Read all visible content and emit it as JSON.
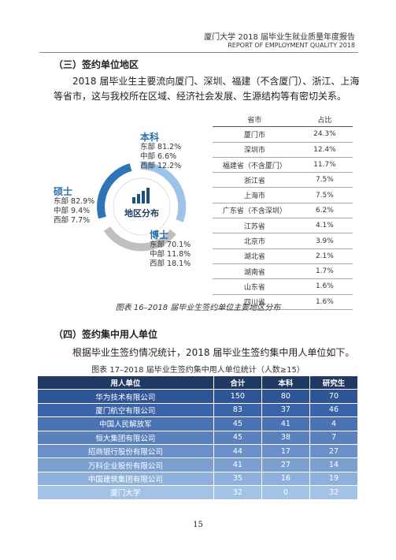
{
  "header": {
    "title": "厦门大学 2018 届毕业生就业质量年度报告",
    "subtitle": "REPORT OF EMPLOYMENT QUALITY 2018"
  },
  "section3": {
    "heading": "（三）签约单位地区",
    "paragraph": "2018 届毕业生主要流向厦门、深圳、福建（不含厦门）、浙江、上海等省市，这与我校所在区域、经济社会发展、生源结构等有密切关系。",
    "diagram": {
      "center_label": "地区分布",
      "groups": [
        {
          "name": "本科",
          "lines": [
            "东部 81.2%",
            "中部 6.6%",
            "西部 12.2%"
          ]
        },
        {
          "name": "硕士",
          "lines": [
            "东部 82.9%",
            "中部 9.4%",
            "西部 7.7%"
          ]
        },
        {
          "name": "博士",
          "lines": [
            "东部 70.1%",
            "中部 11.8%",
            "西部 18.1%"
          ]
        }
      ]
    },
    "region_table": {
      "columns": [
        "省市",
        "占比"
      ],
      "rows": [
        [
          "厦门市",
          "24.3%"
        ],
        [
          "深圳市",
          "12.4%"
        ],
        [
          "福建省（不含厦门）",
          "11.7%"
        ],
        [
          "浙江省",
          "7.5%"
        ],
        [
          "上海市",
          "7.5%"
        ],
        [
          "广东省（不含深圳）",
          "6.2%"
        ],
        [
          "江苏省",
          "4.1%"
        ],
        [
          "北京市",
          "3.9%"
        ],
        [
          "湖北省",
          "2.1%"
        ],
        [
          "湖南省",
          "1.7%"
        ],
        [
          "山东省",
          "1.6%"
        ],
        [
          "四川省",
          "1.6%"
        ]
      ]
    },
    "caption": "图表 16–2018 届毕业生签约单位主要地区分布"
  },
  "section4": {
    "heading": "（四）签约集中用人单位",
    "paragraph": "根据毕业生签约情况统计，2018 届毕业生签约集中用人单位如下。",
    "caption": "图表 17–2018 届毕业生签约集中用人单位统计（人数≥15）",
    "table": {
      "columns": [
        "用人单位",
        "合计",
        "本科",
        "研究生"
      ],
      "rows": [
        [
          "华为技术有限公司",
          "150",
          "80",
          "70"
        ],
        [
          "厦门航空有限公司",
          "83",
          "37",
          "46"
        ],
        [
          "中国人民解放军",
          "45",
          "41",
          "4"
        ],
        [
          "恒大集团有限公司",
          "45",
          "38",
          "7"
        ],
        [
          "招商银行股份有限公司",
          "44",
          "17",
          "27"
        ],
        [
          "万科企业股份有限公司",
          "41",
          "27",
          "14"
        ],
        [
          "中国建筑集团有限公司",
          "35",
          "16",
          "19"
        ],
        [
          "厦门大学",
          "32",
          "0",
          "32"
        ]
      ]
    }
  },
  "page_number": "15"
}
